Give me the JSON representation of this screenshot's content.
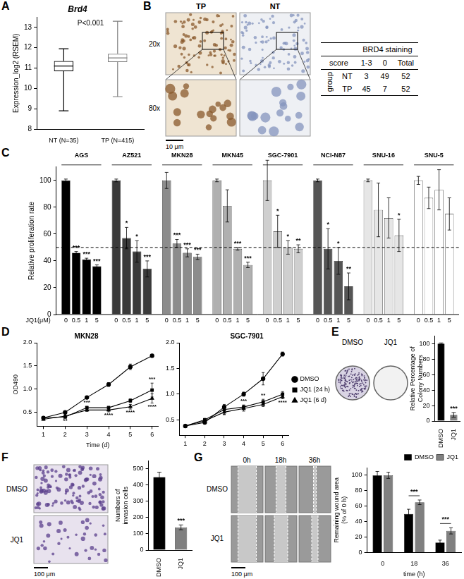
{
  "panel_labels": [
    "A",
    "B",
    "C",
    "D",
    "E",
    "F",
    "G"
  ],
  "chart_data": [
    {
      "type": "box",
      "title": "Brd4",
      "y_label": "Expression_log2 (RSEM)",
      "categories": [
        "NT (N=35)",
        "TP (N=415)"
      ],
      "boxes": [
        {
          "min": 8.9,
          "q1": 10.85,
          "median": 11.1,
          "q3": 11.35,
          "max": 11.95
        },
        {
          "min": 9.6,
          "q1": 11.3,
          "median": 11.5,
          "q3": 11.7,
          "max": 13.3
        }
      ],
      "colors": [
        "#000000",
        "#808080"
      ],
      "ylim": [
        8,
        13.5
      ],
      "yticks": [
        8,
        9,
        10,
        11,
        12,
        13
      ],
      "annotations": [
        "P<0.001"
      ]
    },
    {
      "type": "bar",
      "y_label": "Relative proliferation rate",
      "x_label": "JQ1(μM)",
      "categories": [
        "0",
        "0.5",
        "1",
        "5"
      ],
      "series": [
        {
          "name": "AGS",
          "color": "#000000",
          "values": [
            100,
            46,
            41,
            36
          ],
          "errors": [
            1,
            1,
            1,
            1
          ],
          "significance": [
            null,
            "***",
            "***",
            "***"
          ]
        },
        {
          "name": "AZ521",
          "color": "#3a3a3a",
          "values": [
            100,
            57,
            47,
            34
          ],
          "errors": [
            1,
            8,
            8,
            6
          ],
          "significance": [
            null,
            "*",
            "*",
            "***"
          ]
        },
        {
          "name": "MKN28",
          "color": "#8c8c8c",
          "values": [
            100,
            53,
            46,
            43
          ],
          "errors": [
            6,
            3,
            3,
            2
          ],
          "significance": [
            null,
            "***",
            "***",
            "***"
          ]
        },
        {
          "name": "MKN45",
          "color": "#b0b0b0",
          "values": [
            100,
            81,
            49,
            37
          ],
          "errors": [
            1,
            12,
            1,
            2
          ],
          "significance": [
            null,
            null,
            "***",
            "***"
          ]
        },
        {
          "name": "SGC-7901",
          "color": "#cfcfcf",
          "values": [
            100,
            62,
            50,
            49
          ],
          "errors": [
            15,
            12,
            5,
            3
          ],
          "significance": [
            null,
            "*",
            "*",
            "**"
          ]
        },
        {
          "name": "NCI-N87",
          "color": "#555555",
          "values": [
            100,
            49,
            40,
            21
          ],
          "errors": [
            1,
            15,
            10,
            10
          ],
          "significance": [
            null,
            "*",
            "*",
            "**"
          ]
        },
        {
          "name": "SNU-16",
          "color": "#e6e6e6",
          "values": [
            100,
            78,
            72,
            59
          ],
          "errors": [
            1,
            20,
            15,
            12
          ],
          "significance": [
            null,
            null,
            null,
            "*"
          ]
        },
        {
          "name": "SNU-5",
          "color": "#ffffff",
          "values": [
            100,
            87,
            93,
            75
          ],
          "errors": [
            3,
            8,
            15,
            12
          ],
          "significance": [
            null,
            null,
            null,
            null
          ]
        }
      ],
      "ylim": [
        0,
        110
      ],
      "yticks": [
        0,
        20,
        40,
        60,
        80,
        100
      ],
      "hline": 50
    },
    {
      "type": "line",
      "title": "MKN28",
      "x_label": "Time (d)",
      "y_label": "OD490",
      "x": [
        1,
        2,
        3,
        4,
        5,
        6
      ],
      "xlim": [
        0.7,
        6.3
      ],
      "xticks": [
        1,
        2,
        3,
        4,
        5,
        6
      ],
      "ylim": [
        0.2,
        2.0
      ],
      "yticks": [
        0.5,
        {
          "value": 1,
          "label": "1.0"
        },
        1.5,
        {
          "value": 2,
          "label": "2.0"
        }
      ],
      "series": [
        {
          "name": "DMSO",
          "color": "#000000",
          "marker": "circle",
          "values": [
            0.38,
            0.5,
            0.82,
            1.1,
            1.48,
            1.72
          ],
          "errors": [
            0.02,
            0.02,
            0.03,
            0.04,
            0.06,
            0.03
          ]
        },
        {
          "name": "JQ1 (24 h)",
          "color": "#000000",
          "marker": "square",
          "values": [
            0.38,
            0.4,
            0.6,
            0.6,
            0.75,
            0.98
          ],
          "errors": [
            0.02,
            0.02,
            0.03,
            0.03,
            0.04,
            0.15
          ],
          "significance": [
            null,
            null,
            "***",
            null,
            null,
            "***"
          ]
        },
        {
          "name": "JQ1 (6 d)",
          "color": "#000000",
          "marker": "triangle",
          "values": [
            0.35,
            0.42,
            0.55,
            0.55,
            0.62,
            0.8
          ],
          "errors": [
            0.02,
            0.03,
            0.03,
            0.04,
            0.05,
            0.1
          ],
          "significance": [
            null,
            "**",
            null,
            "****",
            "****",
            "****"
          ]
        }
      ]
    },
    {
      "type": "line",
      "title": "SGC-7901",
      "x": [
        1,
        2,
        3,
        4,
        5,
        6
      ],
      "xlim": [
        0.7,
        6.3
      ],
      "xticks": [
        1,
        2,
        3,
        4,
        5,
        6
      ],
      "ylim": [
        0.2,
        2.0
      ],
      "yticks": [
        0.5,
        {
          "value": 1,
          "label": "1.0"
        },
        1.5,
        {
          "value": 2,
          "label": "2.0"
        }
      ],
      "legend": "right",
      "series": [
        {
          "name": "DMSO",
          "color": "#000000",
          "marker": "circle",
          "values": [
            0.38,
            0.45,
            0.75,
            1.0,
            1.3,
            1.78
          ],
          "errors": [
            0.02,
            0.03,
            0.03,
            0.04,
            0.12,
            0.04
          ]
        },
        {
          "name": "JQ1 (24 h)",
          "color": "#000000",
          "marker": "square",
          "values": [
            0.38,
            0.5,
            0.7,
            0.75,
            0.85,
            1.0
          ],
          "errors": [
            0.02,
            0.03,
            0.1,
            0.04,
            0.05,
            0.05
          ],
          "significance": [
            null,
            null,
            null,
            "***",
            "**",
            null
          ]
        },
        {
          "name": "JQ1 (6 d)",
          "color": "#000000",
          "marker": "triangle",
          "values": [
            0.38,
            0.48,
            0.65,
            0.72,
            0.8,
            0.95
          ],
          "errors": [
            0.02,
            0.03,
            0.04,
            0.05,
            0.04,
            0.04
          ],
          "significance": [
            null,
            null,
            null,
            null,
            null,
            "****"
          ]
        }
      ]
    },
    {
      "type": "bar",
      "y_label": "Relative Percentage of Colony Numbers",
      "categories": [
        "DMSO",
        "JQ1"
      ],
      "values": [
        100,
        8
      ],
      "errors": [
        1,
        3
      ],
      "significance": [
        null,
        "***"
      ],
      "colors": [
        "#000000",
        "#808080"
      ],
      "ylim": [
        0,
        110
      ],
      "yticks": [
        0,
        20,
        40,
        60,
        80,
        100
      ]
    },
    {
      "type": "bar",
      "y_label": "Numbers of invasion cells",
      "categories": [
        "DMSO",
        "JQ1"
      ],
      "values": [
        450,
        140
      ],
      "errors": [
        30,
        15
      ],
      "significance": [
        null,
        "***"
      ],
      "colors": [
        "#000000",
        "#808080"
      ],
      "ylim": [
        0,
        550
      ],
      "yticks": [
        0,
        100,
        200,
        300,
        400,
        500
      ]
    },
    {
      "type": "bar",
      "y_label": "Remaining wound area (% of 0 h)",
      "x_label": "time (h)",
      "categories": [
        "0",
        "18",
        "36"
      ],
      "series": [
        {
          "name": "DMSO",
          "color": "#000000",
          "values": [
            100,
            50,
            13
          ],
          "errors": [
            5,
            6,
            3
          ]
        },
        {
          "name": "JQ1",
          "color": "#808080",
          "values": [
            100,
            65,
            28
          ],
          "errors": [
            4,
            3,
            4
          ]
        }
      ],
      "significance": [
        null,
        "***",
        "***"
      ],
      "ylim": [
        0,
        110
      ],
      "yticks": [
        0,
        20,
        40,
        60,
        80,
        100
      ],
      "legend": "top-right"
    }
  ],
  "figures": {
    "B": {
      "columns": [
        "TP",
        "NT"
      ],
      "magnifications": [
        "20x",
        "80x"
      ],
      "scale_bar": "10 μm",
      "table": {
        "title": "BRD4 staining",
        "row_header": "group",
        "col_header": "score",
        "columns": [
          "1-3",
          "0",
          "Total"
        ],
        "rows": [
          {
            "group": "NT",
            "values": [
              3,
              49,
              52
            ]
          },
          {
            "group": "TP",
            "values": [
              45,
              7,
              52
            ]
          }
        ]
      }
    },
    "E": {
      "columns": [
        "DMSO",
        "JQ1"
      ]
    },
    "F": {
      "rows": [
        "DMSO",
        "JQ1"
      ],
      "scale_bar": "100 μm"
    },
    "G": {
      "columns": [
        "0h",
        "18h",
        "36h"
      ],
      "rows": [
        "DMSO",
        "JQ1"
      ],
      "scale_bar": "100 μm"
    }
  }
}
